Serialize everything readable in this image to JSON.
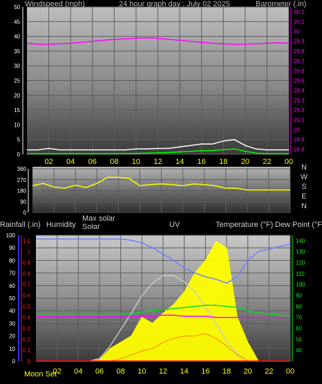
{
  "page_title": "24 hour graph day : July 02 2025",
  "colors": {
    "wind": "#ffffff",
    "wind_avg": "#00ff00",
    "barometer": "#ff00ff",
    "direction": "#ffff00",
    "rain": "#ff0000",
    "humidity": "#6e7dff",
    "max_solar": "#c8c8c8",
    "solar": "#ffff00",
    "uv": "#ffa500",
    "temperature": "#00e020",
    "dew_point": "#ff00ff",
    "left_axis": "#3333ff",
    "right_axis": "#00ff00"
  },
  "chart_data": [
    {
      "id": "wind_baro",
      "type": "line",
      "title": "24 hour graph day : July 02 2025",
      "left_label": "Windspeed (mph)",
      "right_label": "Barometer (.in)",
      "left_ticks": [
        0,
        5,
        10,
        15,
        20,
        25,
        30,
        35,
        40,
        45,
        50
      ],
      "left_ylim": [
        0,
        50
      ],
      "right_ticks": [
        28.8,
        28.9,
        29.0,
        29.1,
        29.2,
        29.3,
        29.4,
        29.5,
        29.6,
        29.7,
        29.8,
        29.9,
        30.0,
        30.1,
        30.2
      ],
      "right_tick_labels": [
        "28.8",
        "28.9",
        "29",
        "29.1",
        "29.2",
        "29.3",
        "29.4",
        "29.5",
        "29.6",
        "29.7",
        "29.8",
        "29.9",
        "30",
        "30.1",
        "30.2"
      ],
      "right_ylim": [
        28.75,
        30.25
      ],
      "x_ticks": [
        "02",
        "04",
        "06",
        "08",
        "10",
        "12",
        "14",
        "16",
        "18",
        "20",
        "22",
        "00"
      ],
      "x_hours": [
        0,
        1,
        2,
        3,
        4,
        5,
        6,
        7,
        8,
        9,
        10,
        11,
        12,
        13,
        14,
        15,
        16,
        17,
        18,
        19,
        20,
        21,
        22,
        23,
        24
      ],
      "series": [
        {
          "key": "wind_gust",
          "values": [
            1.5,
            1.5,
            2,
            1.5,
            1.5,
            1.5,
            1.5,
            1.5,
            1.5,
            1.5,
            1.8,
            1.8,
            2,
            2,
            2.5,
            3,
            3.5,
            3.5,
            4.5,
            5,
            3,
            1.8,
            1.5,
            1.5,
            1.5
          ]
        },
        {
          "key": "wind_avg",
          "values": [
            0.2,
            0.2,
            0.2,
            0.2,
            0.2,
            0.2,
            0.2,
            0.2,
            0.2,
            0.3,
            0.3,
            0.4,
            0.5,
            0.6,
            0.8,
            1,
            1.2,
            1.3,
            1.6,
            1.8,
            1,
            0.4,
            0.2,
            0.2,
            0.2
          ]
        },
        {
          "key": "barometer",
          "values": [
            29.88,
            29.87,
            29.87,
            29.875,
            29.88,
            29.89,
            29.9,
            29.91,
            29.92,
            29.925,
            29.93,
            29.935,
            29.93,
            29.92,
            29.91,
            29.9,
            29.89,
            29.88,
            29.875,
            29.87,
            29.87,
            29.875,
            29.88,
            29.885,
            29.88
          ]
        }
      ]
    },
    {
      "id": "direction",
      "type": "line",
      "left_ticks": [
        0,
        90,
        180,
        270,
        360
      ],
      "left_tick_labels": [
        "0",
        "90",
        "180",
        "270",
        "360"
      ],
      "left_ylim": [
        0,
        360
      ],
      "right_labels": [
        "N",
        "W",
        "S",
        "E",
        "N"
      ],
      "x_hours": [
        0,
        1,
        2,
        3,
        4,
        5,
        6,
        7,
        8,
        9,
        10,
        11,
        12,
        13,
        14,
        15,
        16,
        17,
        18,
        19,
        20,
        21,
        22,
        23,
        24
      ],
      "series": [
        {
          "key": "wind_direction",
          "values": [
            220,
            240,
            210,
            200,
            225,
            205,
            240,
            290,
            290,
            280,
            220,
            230,
            235,
            230,
            220,
            235,
            230,
            220,
            200,
            200,
            185,
            185,
            185,
            185,
            185
          ]
        }
      ]
    },
    {
      "id": "rain_temp_solar",
      "type": "area",
      "headers": [
        "Rainfall (.in)",
        "Humidity",
        "Max solar",
        "Solar",
        "UV",
        "Temperature (°F)",
        "Dew Point (°F)"
      ],
      "rain_ticks": [
        0,
        0.1,
        0.2,
        0.3,
        0.4,
        0.5,
        0.6,
        0.7,
        0.8,
        0.9,
        1.0,
        1.1
      ],
      "rain_tick_labels": [
        "0",
        "0.1",
        "0.2",
        "0.3",
        "0.4",
        "0.5",
        "0.6",
        "0.7",
        "0.8",
        "0.9",
        "1",
        "1.1"
      ],
      "rain_ylim": [
        0,
        1.15
      ],
      "humidity_ticks": [
        0,
        10,
        20,
        30,
        40,
        50,
        60,
        70,
        80,
        90,
        100
      ],
      "humidity_ylim": [
        0,
        100
      ],
      "temp_ticks": [
        40,
        50,
        60,
        70,
        80,
        90,
        100,
        110,
        120,
        130,
        140
      ],
      "temp_ylim": [
        30,
        145
      ],
      "x_ticks": [
        "02",
        "04",
        "06",
        "08",
        "10",
        "12",
        "14",
        "16",
        "18",
        "20",
        "22",
        "00"
      ],
      "moon_set_label": "Moon Set",
      "x_hours": [
        0,
        1,
        2,
        3,
        4,
        5,
        6,
        7,
        8,
        9,
        10,
        11,
        12,
        13,
        14,
        15,
        16,
        17,
        18,
        19,
        20,
        21,
        22,
        23,
        24
      ],
      "series": [
        {
          "key": "rainfall",
          "values": [
            0,
            0,
            0,
            0,
            0,
            0,
            0,
            0,
            0,
            0,
            0,
            0,
            0,
            0,
            0,
            0,
            0,
            0,
            0,
            0,
            0,
            0,
            0,
            0,
            0
          ]
        },
        {
          "key": "humidity",
          "values": [
            97,
            97,
            97,
            97,
            97,
            97,
            97,
            97,
            97,
            96,
            94,
            90,
            85,
            80,
            74,
            70,
            67,
            65,
            62,
            67,
            80,
            87,
            89,
            91,
            93
          ]
        },
        {
          "key": "max_solar",
          "values": [
            0,
            0,
            0,
            0,
            0,
            0,
            2,
            12,
            25,
            38,
            52,
            62,
            68,
            68,
            63,
            55,
            43,
            30,
            16,
            6,
            0,
            0,
            0,
            0,
            0
          ]
        },
        {
          "key": "solar",
          "values": [
            0,
            0,
            0,
            0,
            0,
            0,
            1,
            10,
            15,
            20,
            35,
            30,
            38,
            45,
            55,
            70,
            80,
            95,
            90,
            35,
            15,
            0,
            0,
            0,
            0
          ]
        },
        {
          "key": "uv",
          "values": [
            0,
            0,
            0,
            0,
            0,
            0,
            0,
            0,
            0.02,
            0.05,
            0.08,
            0.1,
            0.15,
            0.18,
            0.2,
            0.2,
            0.22,
            0.18,
            0.12,
            0.05,
            0,
            0,
            0,
            0,
            0
          ]
        },
        {
          "key": "temperature",
          "values": [
            72,
            72,
            72,
            72,
            72,
            72,
            72,
            72,
            72,
            73,
            75,
            76,
            77,
            78,
            79,
            80,
            81,
            81,
            80,
            79,
            76,
            74,
            73,
            72,
            71
          ]
        },
        {
          "key": "dew_point",
          "values": [
            71,
            71,
            71,
            71,
            71,
            71,
            71,
            71,
            71,
            71,
            71,
            71,
            72,
            72,
            71,
            71,
            71,
            70,
            70,
            70,
            70,
            70,
            70,
            70,
            70
          ]
        }
      ]
    }
  ]
}
